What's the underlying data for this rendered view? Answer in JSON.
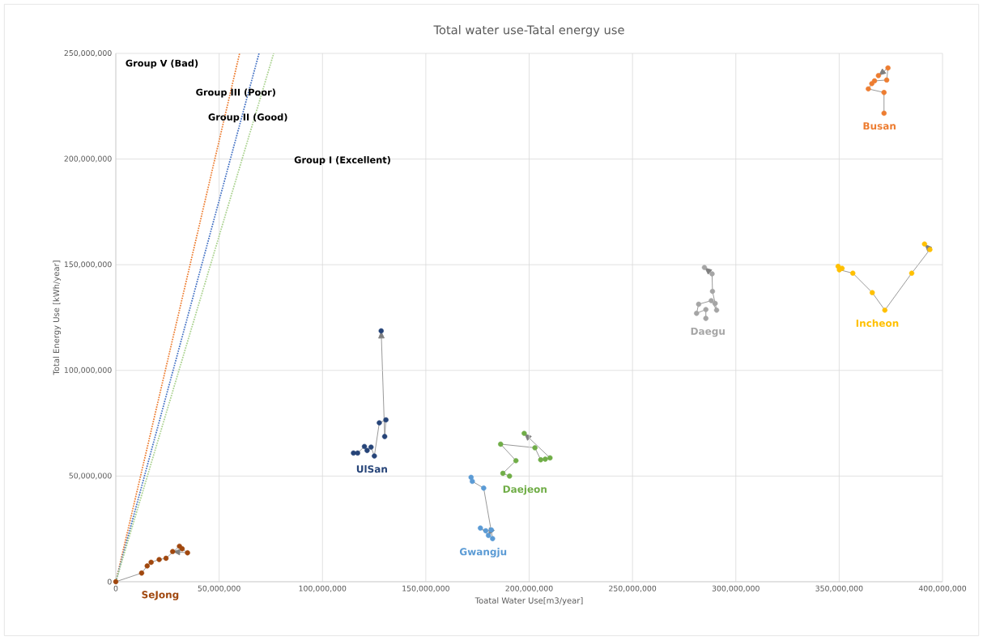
{
  "chart_data": {
    "type": "scatter",
    "title": "Total water use-Tatal energy use",
    "xlabel": "Toatal Water Use[m3/year]",
    "ylabel": "Total Energy Use [kWh/year]",
    "xlim": [
      0,
      400000000
    ],
    "ylim": [
      0,
      250000000
    ],
    "xticks": [
      {
        "value": 0,
        "label": "0"
      },
      {
        "value": 50000000,
        "label": "50,000,000"
      },
      {
        "value": 100000000,
        "label": "100,000,000"
      },
      {
        "value": 150000000,
        "label": "150,000,000"
      },
      {
        "value": 200000000,
        "label": "200,000,000"
      },
      {
        "value": 250000000,
        "label": "250,000,000"
      },
      {
        "value": 300000000,
        "label": "300,000,000"
      },
      {
        "value": 350000000,
        "label": "350,000,000"
      },
      {
        "value": 400000000,
        "label": "400,000,000"
      }
    ],
    "yticks": [
      {
        "value": 0,
        "label": "0"
      },
      {
        "value": 50000000,
        "label": "50,000,000"
      },
      {
        "value": 100000000,
        "label": "100,000,000"
      },
      {
        "value": 150000000,
        "label": "150,000,000"
      },
      {
        "value": 200000000,
        "label": "200,000,000"
      },
      {
        "value": 250000000,
        "label": "250,000,000"
      }
    ],
    "grid": true,
    "series": [
      {
        "type": "line",
        "color": "#ed7d31",
        "line_style": "dotted",
        "marker": "none",
        "x": [
          0,
          59900000
        ],
        "values": [
          0,
          250000000
        ]
      },
      {
        "type": "line",
        "color": "#4472c4",
        "line_style": "dotted",
        "marker": "none",
        "x": [
          0,
          69300000
        ],
        "values": [
          0,
          250000000
        ]
      },
      {
        "type": "line",
        "color": "#a9d18e",
        "line_style": "dotted",
        "marker": "none",
        "x": [
          0,
          76400000
        ],
        "values": [
          0,
          250000000
        ]
      },
      {
        "name": "SeJong",
        "color": "#a0470e",
        "marker": "circle",
        "x": [
          0,
          12500000,
          15200000,
          17100000,
          21000000,
          24300000,
          30800000,
          32100000,
          34700000,
          27500000
        ],
        "values": [
          0,
          4100000,
          7500000,
          9200000,
          10500000,
          11100000,
          16800000,
          15600000,
          13700000,
          14300000
        ]
      },
      {
        "name": "UlSan",
        "color": "#264478",
        "marker": "circle",
        "x": [
          115000000,
          117000000,
          120300000,
          121600000,
          123500000,
          125100000,
          127500000,
          130700000,
          130100000,
          128400000
        ],
        "values": [
          60900000,
          60900000,
          64000000,
          62100000,
          63700000,
          59500000,
          75200000,
          76600000,
          68700000,
          118700000
        ]
      },
      {
        "name": "Gwangju",
        "color": "#5b9bd5",
        "marker": "circle",
        "x": [
          171900000,
          172500000,
          178000000,
          182300000,
          176400000,
          179000000,
          181700000,
          180300000
        ],
        "values": [
          49400000,
          47500000,
          44300000,
          20400000,
          25400000,
          24100000,
          24500000,
          21900000
        ]
      },
      {
        "name": "Daejeon",
        "color": "#70ad47",
        "marker": "circle",
        "x": [
          190500000,
          187300000,
          193600000,
          186200000,
          202800000,
          205600000,
          207800000,
          210100000,
          197600000
        ],
        "values": [
          50000000,
          51300000,
          57300000,
          65100000,
          63400000,
          57700000,
          58000000,
          58600000,
          70200000
        ]
      },
      {
        "name": "Daegu",
        "color": "#a5a5a5",
        "marker": "circle",
        "x": [
          285500000,
          285500000,
          281000000,
          282000000,
          288100000,
          290700000,
          290000000,
          288700000,
          288500000,
          284800000
        ],
        "values": [
          124600000,
          128800000,
          127000000,
          131300000,
          133000000,
          128500000,
          131700000,
          137400000,
          145700000,
          148700000
        ]
      },
      {
        "name": "Incheon",
        "color": "#ffc000",
        "marker": "circle",
        "x": [
          349500000,
          351400000,
          350100000,
          356600000,
          366000000,
          372100000,
          385100000,
          393900000,
          391300000
        ],
        "values": [
          149200000,
          148300000,
          147600000,
          146000000,
          136800000,
          128500000,
          146000000,
          157200000,
          159800000
        ]
      },
      {
        "name": "Busan",
        "color": "#ed7d31",
        "marker": "circle",
        "x": [
          371700000,
          371700000,
          364100000,
          365800000,
          367100000,
          373000000,
          373600000,
          369000000
        ],
        "values": [
          221700000,
          231500000,
          233200000,
          235700000,
          237000000,
          237400000,
          243100000,
          239500000
        ]
      }
    ],
    "annotations": [
      "Group V (Bad)",
      "Group III (Poor)",
      "Group II (Good)",
      "Group I (Excellent)"
    ]
  }
}
